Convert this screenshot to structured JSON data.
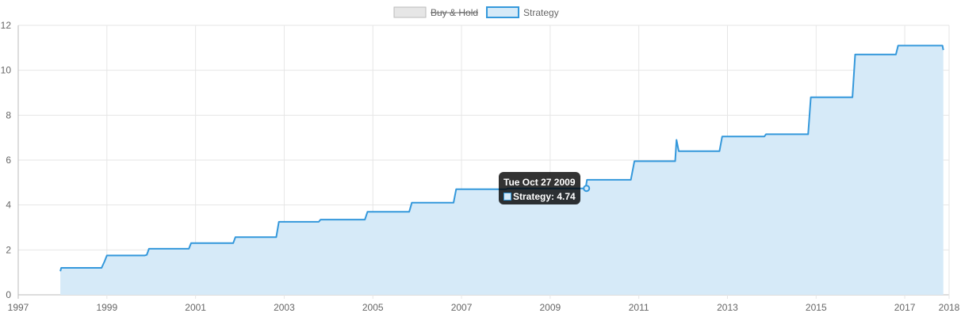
{
  "chart_data": {
    "type": "area",
    "x_axis": {
      "type": "time",
      "min": 1997,
      "max": 2018,
      "ticks": [
        "1997",
        "1999",
        "2001",
        "2003",
        "2005",
        "2007",
        "2009",
        "2011",
        "2013",
        "2015",
        "2017",
        "2018"
      ]
    },
    "y_axis": {
      "min": 0,
      "max": 12,
      "ticks": [
        "0",
        "2",
        "4",
        "6",
        "8",
        "10",
        "12"
      ]
    },
    "grid": true,
    "legend": {
      "position": "top-center",
      "items": [
        {
          "label": "Buy & Hold",
          "hidden": true,
          "fill": "#e6e6e6",
          "border": "#bbbbbb"
        },
        {
          "label": "Strategy",
          "hidden": false,
          "fill": "#d6eaf8",
          "border": "#3498db"
        }
      ]
    },
    "series": [
      {
        "name": "Strategy",
        "color": "#3498db",
        "fill": "#d6eaf8",
        "points": [
          [
            1997.95,
            1.05
          ],
          [
            1997.97,
            1.2
          ],
          [
            1998.88,
            1.2
          ],
          [
            1998.95,
            1.5
          ],
          [
            1999.0,
            1.75
          ],
          [
            1999.85,
            1.75
          ],
          [
            1999.9,
            1.78
          ],
          [
            1999.95,
            2.05
          ],
          [
            2000.85,
            2.05
          ],
          [
            2000.9,
            2.3
          ],
          [
            2001.85,
            2.3
          ],
          [
            2001.9,
            2.57
          ],
          [
            2002.82,
            2.57
          ],
          [
            2002.88,
            3.25
          ],
          [
            2003.78,
            3.25
          ],
          [
            2003.82,
            3.35
          ],
          [
            2004.82,
            3.35
          ],
          [
            2004.88,
            3.7
          ],
          [
            2005.82,
            3.7
          ],
          [
            2005.88,
            4.1
          ],
          [
            2006.82,
            4.1
          ],
          [
            2006.88,
            4.7
          ],
          [
            2008.0,
            4.7
          ],
          [
            2008.05,
            4.74
          ],
          [
            2009.8,
            4.74
          ],
          [
            2009.83,
            5.12
          ],
          [
            2010.82,
            5.12
          ],
          [
            2010.9,
            5.95
          ],
          [
            2011.82,
            5.95
          ],
          [
            2011.85,
            6.9
          ],
          [
            2011.9,
            6.4
          ],
          [
            2012.82,
            6.4
          ],
          [
            2012.88,
            7.05
          ],
          [
            2013.83,
            7.05
          ],
          [
            2013.87,
            7.15
          ],
          [
            2014.82,
            7.15
          ],
          [
            2014.88,
            8.8
          ],
          [
            2015.82,
            8.8
          ],
          [
            2015.88,
            10.7
          ],
          [
            2016.8,
            10.7
          ],
          [
            2016.85,
            11.1
          ],
          [
            2017.85,
            11.1
          ],
          [
            2017.87,
            10.9
          ]
        ]
      }
    ],
    "tooltip": {
      "title": "Tue Oct 27 2009",
      "series": "Strategy",
      "value": "4.74",
      "label": "Strategy: 4.74",
      "x": 2009.82,
      "y": 4.74
    }
  }
}
